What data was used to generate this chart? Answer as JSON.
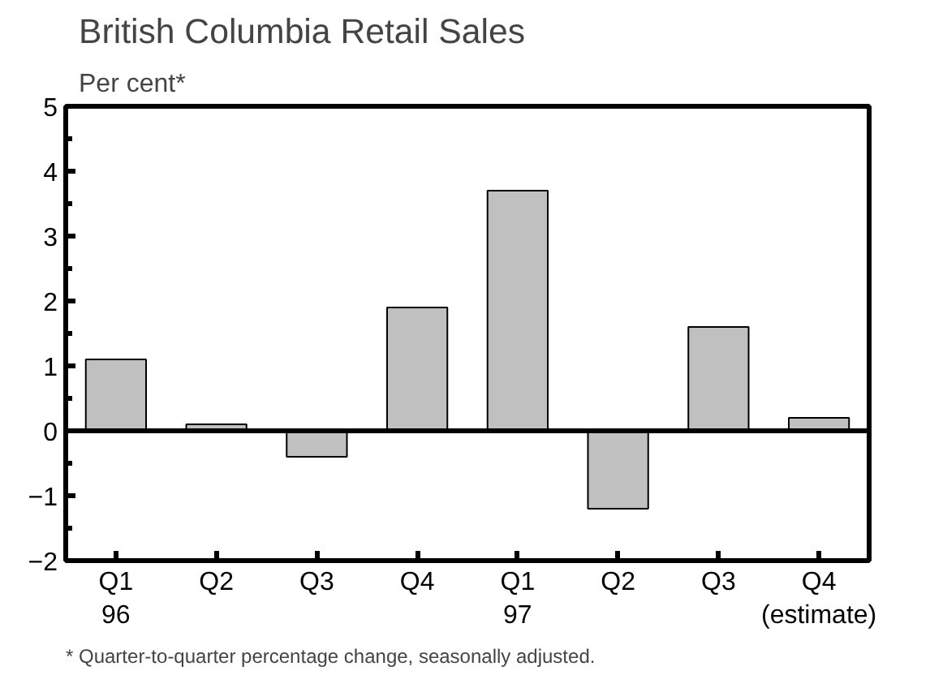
{
  "chart_data": {
    "type": "bar",
    "title": "British Columbia Retail Sales",
    "subtitle": "Per cent*",
    "categories": [
      "Q1\n96",
      "Q2",
      "Q3",
      "Q4",
      "Q1\n97",
      "Q2",
      "Q3",
      "Q4\n(estimate)"
    ],
    "values": [
      1.1,
      0.1,
      -0.4,
      1.9,
      3.7,
      -1.2,
      1.6,
      0.2
    ],
    "color": "#c0c0c0",
    "ylim": [
      -2,
      5
    ],
    "yticks": [
      -2,
      -1,
      0,
      1,
      2,
      3,
      4,
      5
    ],
    "grid": false,
    "ref_lines": [
      {
        "axis": "y",
        "value": 0
      }
    ],
    "annotations": [
      "* Quarter-to-quarter percentage change, seasonally adjusted."
    ]
  }
}
